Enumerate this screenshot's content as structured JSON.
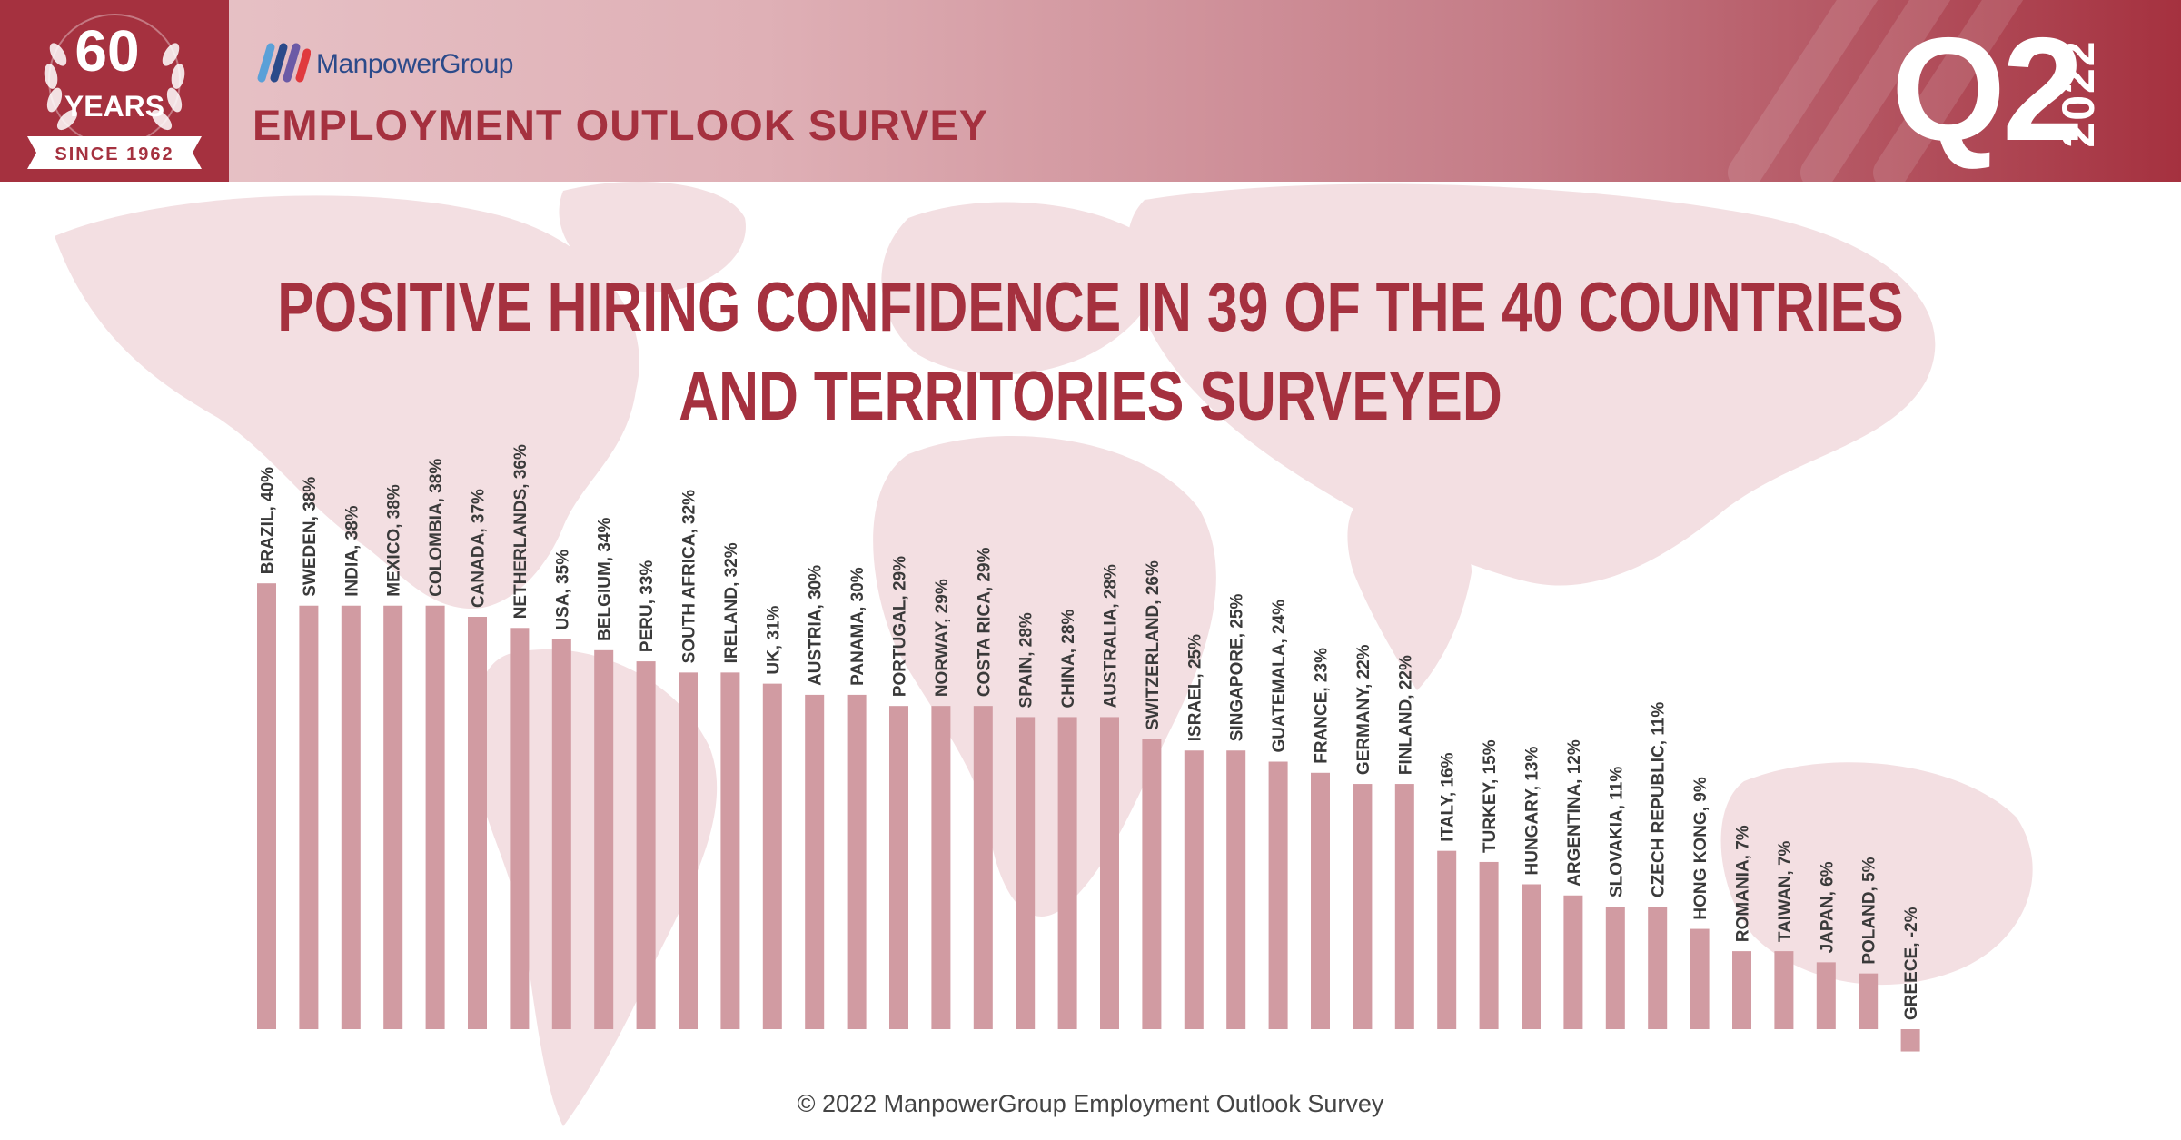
{
  "badge": {
    "number": "60",
    "years": "YEARS",
    "since": "SINCE 1962"
  },
  "header": {
    "brand": "ManpowerGroup",
    "survey_title": "EMPLOYMENT OUTLOOK SURVEY",
    "quarter": "Q2",
    "year": "2022"
  },
  "colors": {
    "accent": "#a5313f",
    "bar": "#d19ba2",
    "brand_blue": "#2b4a8a",
    "header_dark": "#a5313f"
  },
  "chart_data": {
    "type": "bar",
    "title": [
      "POSITIVE HIRING CONFIDENCE IN 39 OF THE 40 COUNTRIES",
      "AND TERRITORIES SURVEYED"
    ],
    "categories": [
      "BRAZIL",
      "SWEDEN",
      "INDIA",
      "MEXICO",
      "COLOMBIA",
      "CANADA",
      "NETHERLANDS",
      "USA",
      "BELGIUM",
      "PERU",
      "SOUTH AFRICA",
      "IRELAND",
      "UK",
      "AUSTRIA",
      "PANAMA",
      "PORTUGAL",
      "NORWAY",
      "COSTA RICA",
      "SPAIN",
      "CHINA",
      "AUSTRALIA",
      "SWITZERLAND",
      "ISRAEL",
      "SINGAPORE",
      "GUATEMALA",
      "FRANCE",
      "GERMANY",
      "FINLAND",
      "ITALY",
      "TURKEY",
      "HUNGARY",
      "ARGENTINA",
      "SLOVAKIA",
      "CZECH REPUBLIC",
      "HONG KONG",
      "ROMANIA",
      "TAIWAN",
      "JAPAN",
      "POLAND",
      "GREECE"
    ],
    "values": [
      40,
      38,
      38,
      38,
      38,
      37,
      36,
      35,
      34,
      33,
      32,
      32,
      31,
      30,
      30,
      29,
      29,
      29,
      28,
      28,
      28,
      26,
      25,
      25,
      24,
      23,
      22,
      22,
      16,
      15,
      13,
      12,
      11,
      11,
      9,
      7,
      7,
      6,
      5,
      -2
    ],
    "labels": [
      "BRAZIL, 40%",
      "SWEDEN, 38%",
      "INDIA, 38%",
      "MEXICO, 38%",
      "COLOMBIA, 38%",
      "CANADA, 37%",
      "NETHERLANDS, 36%",
      "USA, 35%",
      "BELGIUM, 34%",
      "PERU, 33%",
      "SOUTH AFRICA, 32%",
      "IRELAND, 32%",
      "UK, 31%",
      "AUSTRIA, 30%",
      "PANAMA, 30%",
      "PORTUGAL, 29%",
      "NORWAY, 29%",
      "COSTA RICA, 29%",
      "SPAIN, 28%",
      "CHINA, 28%",
      "AUSTRALIA, 28%",
      "SWITZERLAND, 26%",
      "ISRAEL, 25%",
      "SINGAPORE, 25%",
      "GUATEMALA, 24%",
      "FRANCE, 23%",
      "GERMANY, 22%",
      "FINLAND, 22%",
      "ITALY, 16%",
      "TURKEY, 15%",
      "HUNGARY, 13%",
      "ARGENTINA, 12%",
      "SLOVAKIA, 11%",
      "CZECH REPUBLIC, 11%",
      "HONG KONG, 9%",
      "ROMANIA, 7%",
      "TAIWAN, 7%",
      "JAPAN, 6%",
      "POLAND, 5%",
      "GREECE, -2%"
    ],
    "unit": "%",
    "grid": false,
    "legend": "none"
  },
  "footer": {
    "copyright": "© 2022 ManpowerGroup Employment Outlook Survey"
  }
}
